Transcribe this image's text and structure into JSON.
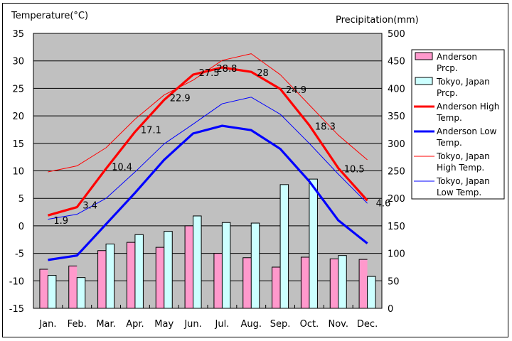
{
  "chart_data": {
    "type": "bar+line",
    "title": "",
    "left_axis": {
      "label": "Temperature(°C)",
      "range": [
        -15,
        35
      ],
      "ticks": [
        35,
        30,
        25,
        20,
        15,
        10,
        5,
        0,
        -5,
        -10,
        -15
      ]
    },
    "right_axis": {
      "label": "Precipitation(mm)",
      "range": [
        0,
        500
      ],
      "ticks": [
        500,
        450,
        400,
        350,
        300,
        250,
        200,
        150,
        100,
        50,
        0
      ]
    },
    "categories": [
      "Jan.",
      "Feb.",
      "Mar.",
      "Apr.",
      "May",
      "Jun.",
      "Jul.",
      "Aug.",
      "Sep.",
      "Oct.",
      "Nov.",
      "Dec."
    ],
    "grid": "horizontal",
    "legend_position": "right",
    "series": [
      {
        "name": "Anderson Prcp.",
        "kind": "bar",
        "axis": "right",
        "color": "#ff99cc",
        "values": [
          71,
          77,
          105,
          120,
          111,
          150,
          100,
          92,
          75,
          93,
          90,
          89
        ]
      },
      {
        "name": "Tokyo, Japan Prcp.",
        "kind": "bar",
        "axis": "right",
        "color": "#ccffff",
        "values": [
          60,
          56,
          117,
          134,
          140,
          168,
          156,
          155,
          225,
          235,
          96,
          58
        ]
      },
      {
        "name": "Anderson High Temp.",
        "kind": "line",
        "axis": "left",
        "color": "#ff0000",
        "width": "thick",
        "values": [
          1.9,
          3.4,
          10.4,
          17.1,
          22.9,
          27.5,
          28.8,
          28,
          24.9,
          18.3,
          10.5,
          4.6
        ],
        "data_labels": [
          "1.9",
          "3.4",
          "10.4",
          "17.1",
          "22.9",
          "27.5",
          "28.8",
          "28",
          "24.9",
          "18.3",
          "10.5",
          "4.6"
        ]
      },
      {
        "name": "Anderson Low Temp.",
        "kind": "line",
        "axis": "left",
        "color": "#0000ff",
        "width": "thick",
        "values": [
          -6.2,
          -5.4,
          0.3,
          6.0,
          12.0,
          16.8,
          18.2,
          17.4,
          14.0,
          8.1,
          1.0,
          -3.2
        ]
      },
      {
        "name": "Tokyo, Japan High Temp.",
        "kind": "line",
        "axis": "left",
        "color": "#ff0000",
        "width": "thin",
        "values": [
          9.8,
          10.9,
          14.2,
          19.4,
          23.8,
          26.5,
          30.1,
          31.3,
          27.5,
          22.0,
          16.5,
          12.0
        ]
      },
      {
        "name": "Tokyo, Japan Low Temp.",
        "kind": "line",
        "axis": "left",
        "color": "#0000ff",
        "width": "thin",
        "values": [
          1.2,
          2.1,
          5.0,
          9.8,
          14.9,
          18.5,
          22.2,
          23.4,
          20.3,
          15.0,
          9.4,
          4.1
        ]
      }
    ],
    "legend": [
      {
        "line1": "Anderson",
        "line2": "Prcp."
      },
      {
        "line1": "Tokyo, Japan",
        "line2": "Prcp."
      },
      {
        "line1": "Anderson High",
        "line2": "Temp."
      },
      {
        "line1": "Anderson Low",
        "line2": "Temp."
      },
      {
        "line1": "Tokyo, Japan",
        "line2": "High Temp."
      },
      {
        "line1": "Tokyo, Japan",
        "line2": "Low Temp."
      }
    ],
    "plot_background": "#c0c0c0"
  }
}
